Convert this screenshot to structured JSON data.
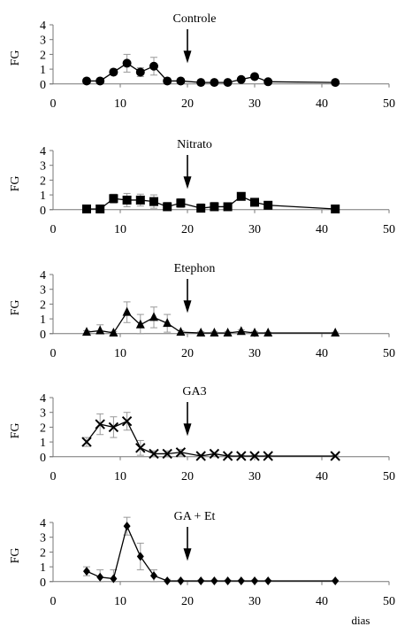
{
  "chart_data": [
    {
      "type": "line",
      "title": "Controle",
      "ylabel": "FG",
      "xlabel": "",
      "xlim": [
        0,
        50
      ],
      "ylim": [
        0,
        4
      ],
      "xticks": [
        0,
        10,
        20,
        30,
        40,
        50
      ],
      "yticks": [
        0,
        1,
        2,
        3,
        4
      ],
      "marker": "circle",
      "arrow_x": 20,
      "series": [
        {
          "x": [
            5,
            7,
            9,
            11,
            13,
            15,
            17,
            19,
            22,
            24,
            26,
            28,
            30,
            32,
            42
          ],
          "y": [
            0.2,
            0.2,
            0.8,
            1.4,
            0.8,
            1.2,
            0.2,
            0.2,
            0.1,
            0.1,
            0.1,
            0.3,
            0.5,
            0.15,
            0.1
          ],
          "err": [
            0.1,
            0.1,
            0.2,
            0.6,
            0.3,
            0.6,
            0.2,
            0.15,
            0.1,
            0.1,
            0.1,
            0.1,
            0.1,
            0.05,
            0.05
          ]
        }
      ]
    },
    {
      "type": "line",
      "title": "Nitrato",
      "ylabel": "FG",
      "xlabel": "",
      "xlim": [
        0,
        50
      ],
      "ylim": [
        0,
        4
      ],
      "xticks": [
        0,
        10,
        20,
        30,
        40,
        50
      ],
      "yticks": [
        0,
        1,
        2,
        3,
        4
      ],
      "marker": "square",
      "arrow_x": 20,
      "series": [
        {
          "x": [
            5,
            7,
            9,
            11,
            13,
            15,
            17,
            19,
            22,
            24,
            26,
            28,
            30,
            32,
            42
          ],
          "y": [
            0.05,
            0.05,
            0.75,
            0.65,
            0.65,
            0.55,
            0.2,
            0.45,
            0.1,
            0.2,
            0.2,
            0.9,
            0.5,
            0.3,
            0.05
          ],
          "err": [
            0.05,
            0.05,
            0.3,
            0.45,
            0.4,
            0.45,
            0.3,
            0.3,
            0.3,
            0.3,
            0.1,
            0.1,
            0.1,
            0.1,
            0.05
          ]
        }
      ]
    },
    {
      "type": "line",
      "title": "Etephon",
      "ylabel": "FG",
      "xlabel": "",
      "xlim": [
        0,
        50
      ],
      "ylim": [
        0,
        4
      ],
      "xticks": [
        0,
        10,
        20,
        30,
        40,
        50
      ],
      "yticks": [
        0,
        1,
        2,
        3,
        4
      ],
      "marker": "triangle",
      "arrow_x": 20,
      "series": [
        {
          "x": [
            5,
            7,
            9,
            11,
            13,
            15,
            17,
            19,
            22,
            24,
            26,
            28,
            30,
            32,
            42
          ],
          "y": [
            0.1,
            0.2,
            0.05,
            1.45,
            0.6,
            1.1,
            0.7,
            0.1,
            0.05,
            0.05,
            0.05,
            0.15,
            0.05,
            0.05,
            0.05
          ],
          "err": [
            0.1,
            0.4,
            0.1,
            0.7,
            0.7,
            0.7,
            0.6,
            0.1,
            0.1,
            0.1,
            0.1,
            0.1,
            0.1,
            0.05,
            0.05
          ]
        }
      ]
    },
    {
      "type": "line",
      "title": "GA3",
      "ylabel": "FG",
      "xlabel": "",
      "xlim": [
        0,
        50
      ],
      "ylim": [
        0,
        4
      ],
      "xticks": [
        0,
        10,
        20,
        30,
        40,
        50
      ],
      "yticks": [
        0,
        1,
        2,
        3,
        4
      ],
      "marker": "x",
      "arrow_x": 20,
      "series": [
        {
          "x": [
            5,
            7,
            9,
            11,
            13,
            15,
            17,
            19,
            22,
            24,
            26,
            28,
            30,
            32,
            42
          ],
          "y": [
            1.0,
            2.2,
            2.0,
            2.4,
            0.6,
            0.2,
            0.2,
            0.3,
            0.05,
            0.2,
            0.05,
            0.05,
            0.05,
            0.05,
            0.05
          ],
          "err": [
            0.3,
            0.7,
            0.7,
            0.6,
            0.5,
            0.2,
            0.2,
            0.2,
            0.1,
            0.1,
            0.05,
            0.05,
            0.05,
            0.05,
            0.05
          ]
        }
      ]
    },
    {
      "type": "line",
      "title": "GA + Et",
      "ylabel": "FG",
      "xlabel": "dias",
      "xlim": [
        0,
        50
      ],
      "ylim": [
        0,
        4
      ],
      "xticks": [
        0,
        10,
        20,
        30,
        40,
        50
      ],
      "yticks": [
        0,
        1,
        2,
        3,
        4
      ],
      "marker": "diamond",
      "arrow_x": 20,
      "series": [
        {
          "x": [
            5,
            7,
            9,
            11,
            13,
            15,
            17,
            19,
            22,
            24,
            26,
            28,
            30,
            32,
            42
          ],
          "y": [
            0.7,
            0.3,
            0.2,
            3.75,
            1.7,
            0.4,
            0.05,
            0.05,
            0.05,
            0.05,
            0.05,
            0.05,
            0.05,
            0.05,
            0.05
          ],
          "err": [
            0.3,
            0.5,
            0.6,
            0.6,
            0.9,
            0.4,
            0.1,
            0.05,
            0.05,
            0.05,
            0.05,
            0.05,
            0.05,
            0.05,
            0.05
          ]
        }
      ]
    }
  ]
}
